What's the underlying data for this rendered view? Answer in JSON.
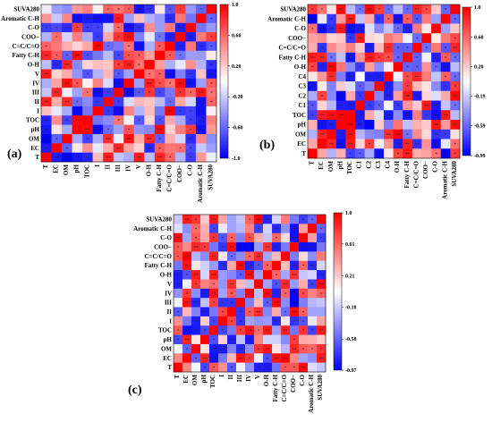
{
  "chart_data": [
    {
      "type": "heatmap",
      "panel_label": "(a)",
      "rows": [
        "SUVA280",
        "Aromatic C-H",
        "C-O",
        "COO−",
        "C=C/C=O",
        "Fatty C-H",
        "O-H",
        "V",
        "IV",
        "III",
        "II",
        "I",
        "TOC",
        "pH",
        "OM",
        "EC",
        "T"
      ],
      "cols": [
        "T",
        "EC",
        "OM",
        "pH",
        "TOC",
        "I",
        "II",
        "III",
        "IV",
        "V",
        "O-H",
        "Fatty C-H",
        "C=C/C=O",
        "COO−",
        "C-O",
        "Aromatic C-H",
        "SUVA280"
      ],
      "colorbar": {
        "ticks": [
          1.0,
          0.6,
          0.2,
          -0.2,
          -0.6,
          -1.0
        ],
        "tick_labels": [
          "1.0",
          "0.60",
          "0.20",
          "-0.20",
          "-0.60",
          "-1.0"
        ],
        "min": -1.0,
        "max": 1.0
      },
      "grid": false,
      "legend": "right",
      "seed": 11
    },
    {
      "type": "heatmap",
      "panel_label": "(b)",
      "rows": [
        "SUVA280",
        "Aromatic C-H",
        "C-O",
        "COO−",
        "C=C/C=O",
        "Fatty C-H",
        "O-H",
        "C4",
        "C3",
        "C2",
        "C1",
        "TOC",
        "pH",
        "OM",
        "EC",
        "T"
      ],
      "cols": [
        "T",
        "EC",
        "OM",
        "pH",
        "TOC",
        "C1",
        "C2",
        "C3",
        "C4",
        "O-H",
        "Fatty C-H",
        "C=C/C=O",
        "COO−",
        "C-O",
        "Aromatic C-H",
        "SUVA280"
      ],
      "colorbar": {
        "ticks": [
          1.0,
          0.6,
          0.2,
          -0.19,
          -0.59,
          -0.99
        ],
        "tick_labels": [
          "1.0",
          "0.60",
          "0.20",
          "-0.19",
          "-0.59",
          "-0.99"
        ],
        "min": -0.99,
        "max": 1.0
      },
      "grid": false,
      "legend": "right",
      "seed": 23
    },
    {
      "type": "heatmap",
      "panel_label": "(c)",
      "rows": [
        "SUVA280",
        "Aromatic C-H",
        "C-O",
        "COO−",
        "C=C/C=O",
        "Fatty C-H",
        "O-H",
        "V",
        "IV",
        "III",
        "II",
        "I",
        "TOC",
        "pH",
        "OM",
        "EC",
        "T"
      ],
      "cols": [
        "T",
        "EC",
        "OM",
        "pH",
        "TOC",
        "I",
        "II",
        "III",
        "IV",
        "V",
        "O-H",
        "Fatty C-H",
        "C=C/C=O",
        "COO−",
        "C-O",
        "Aromatic C-H",
        "SUVA280"
      ],
      "colorbar": {
        "ticks": [
          1.0,
          0.61,
          0.21,
          -0.18,
          -0.58,
          -0.97
        ],
        "tick_labels": [
          "1.0",
          "0.61",
          "0.21",
          "-0.18",
          "-0.58",
          "-0.97"
        ],
        "min": -0.97,
        "max": 1.0
      },
      "grid": false,
      "legend": "right",
      "seed": 37
    }
  ]
}
